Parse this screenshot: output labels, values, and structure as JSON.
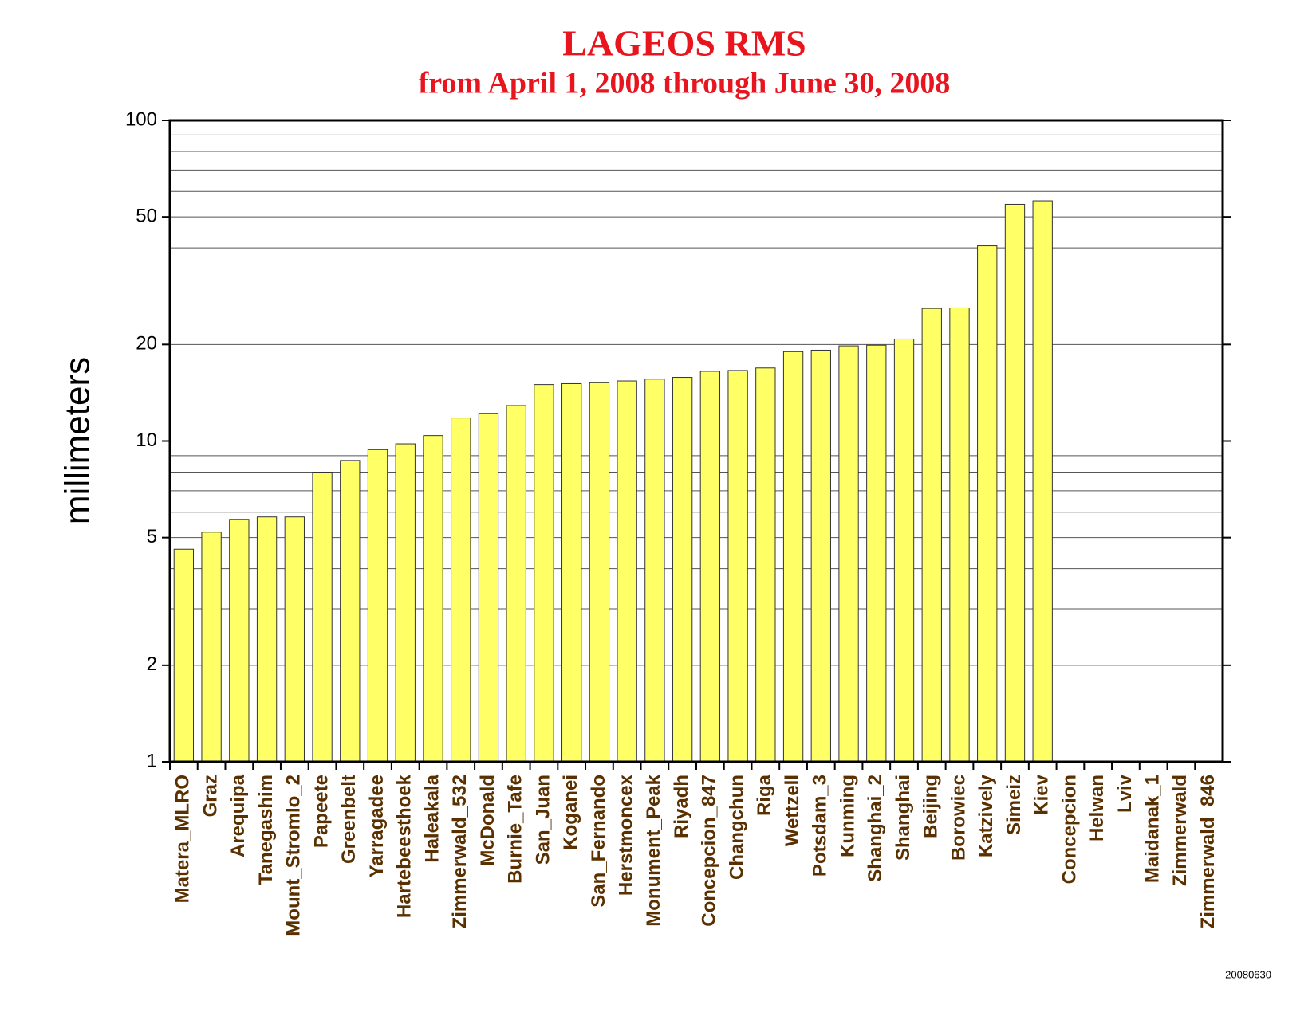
{
  "chart_data": {
    "type": "bar",
    "title": "LAGEOS RMS",
    "subtitle": "from April 1, 2008 through June 30, 2008",
    "y_label": "millimeters",
    "footnote": "20080630",
    "categories": [
      "Matera_MLRO",
      "Graz",
      "Arequipa",
      "Tanegashim",
      "Mount_Stromlo_2",
      "Papeete",
      "Greenbelt",
      "Yarragadee",
      "Hartebeesthoek",
      "Haleakala",
      "Zimmerwald_532",
      "McDonald",
      "Burnie_Tafe",
      "San_Juan",
      "Koganei",
      "San_Fernando",
      "Herstmoncex",
      "Monument_Peak",
      "Riyadh",
      "Concepcion_847",
      "Changchun",
      "Riga",
      "Wettzell",
      "Potsdam_3",
      "Kunming",
      "Shanghai_2",
      "Shanghai",
      "Beijing",
      "Borowiec",
      "Katzively",
      "Simeiz",
      "Kiev",
      "Concepcion",
      "Helwan",
      "Lviv",
      "Maidanak_1",
      "Zimmerwald",
      "Zimmerwald_846"
    ],
    "values": [
      4.6,
      5.2,
      5.7,
      5.8,
      5.8,
      8.0,
      8.7,
      9.4,
      9.8,
      10.4,
      11.8,
      12.2,
      12.9,
      15.0,
      15.1,
      15.2,
      15.4,
      15.6,
      15.8,
      16.5,
      16.6,
      16.9,
      19.0,
      19.2,
      19.8,
      19.9,
      20.8,
      25.9,
      26.0,
      40.6,
      54.7,
      56.1,
      null,
      null,
      null,
      null,
      null,
      null
    ],
    "color": "#ffff66",
    "label_color": "#5a3000",
    "log_scale": true,
    "ylim": [
      1,
      100
    ],
    "yticks": [
      1,
      2,
      5,
      10,
      20,
      50,
      100
    ],
    "minor_grid": [
      3,
      4,
      6,
      7,
      8,
      9,
      30,
      40,
      60,
      70,
      80,
      90
    ],
    "grid": true
  }
}
